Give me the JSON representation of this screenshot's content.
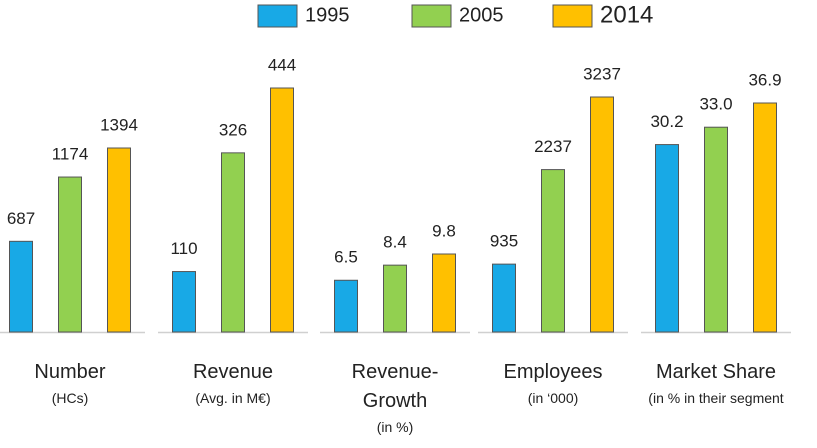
{
  "chart_data": {
    "type": "bar",
    "categories": [
      "Number",
      "Revenue",
      "Revenue-Growth",
      "Employees",
      "Market Share"
    ],
    "category_notes": [
      "(HCs)",
      "(Avg. in M€)",
      "(in %)",
      "(in ‘000)",
      "(in % in their segment"
    ],
    "series": [
      {
        "name": "1995",
        "color": "#18a9e6",
        "values": [
          687,
          110,
          6.5,
          935,
          30.2
        ]
      },
      {
        "name": "2005",
        "color": "#92d050",
        "values": [
          1174,
          326,
          8.4,
          2237,
          33.0
        ],
        "value_labels": [
          "1174",
          "326",
          "8.4",
          "2237",
          "33.0"
        ]
      },
      {
        "name": "2014",
        "color": "#ffc000",
        "values": [
          1394,
          444,
          9.8,
          3237,
          36.9
        ]
      }
    ]
  }
}
